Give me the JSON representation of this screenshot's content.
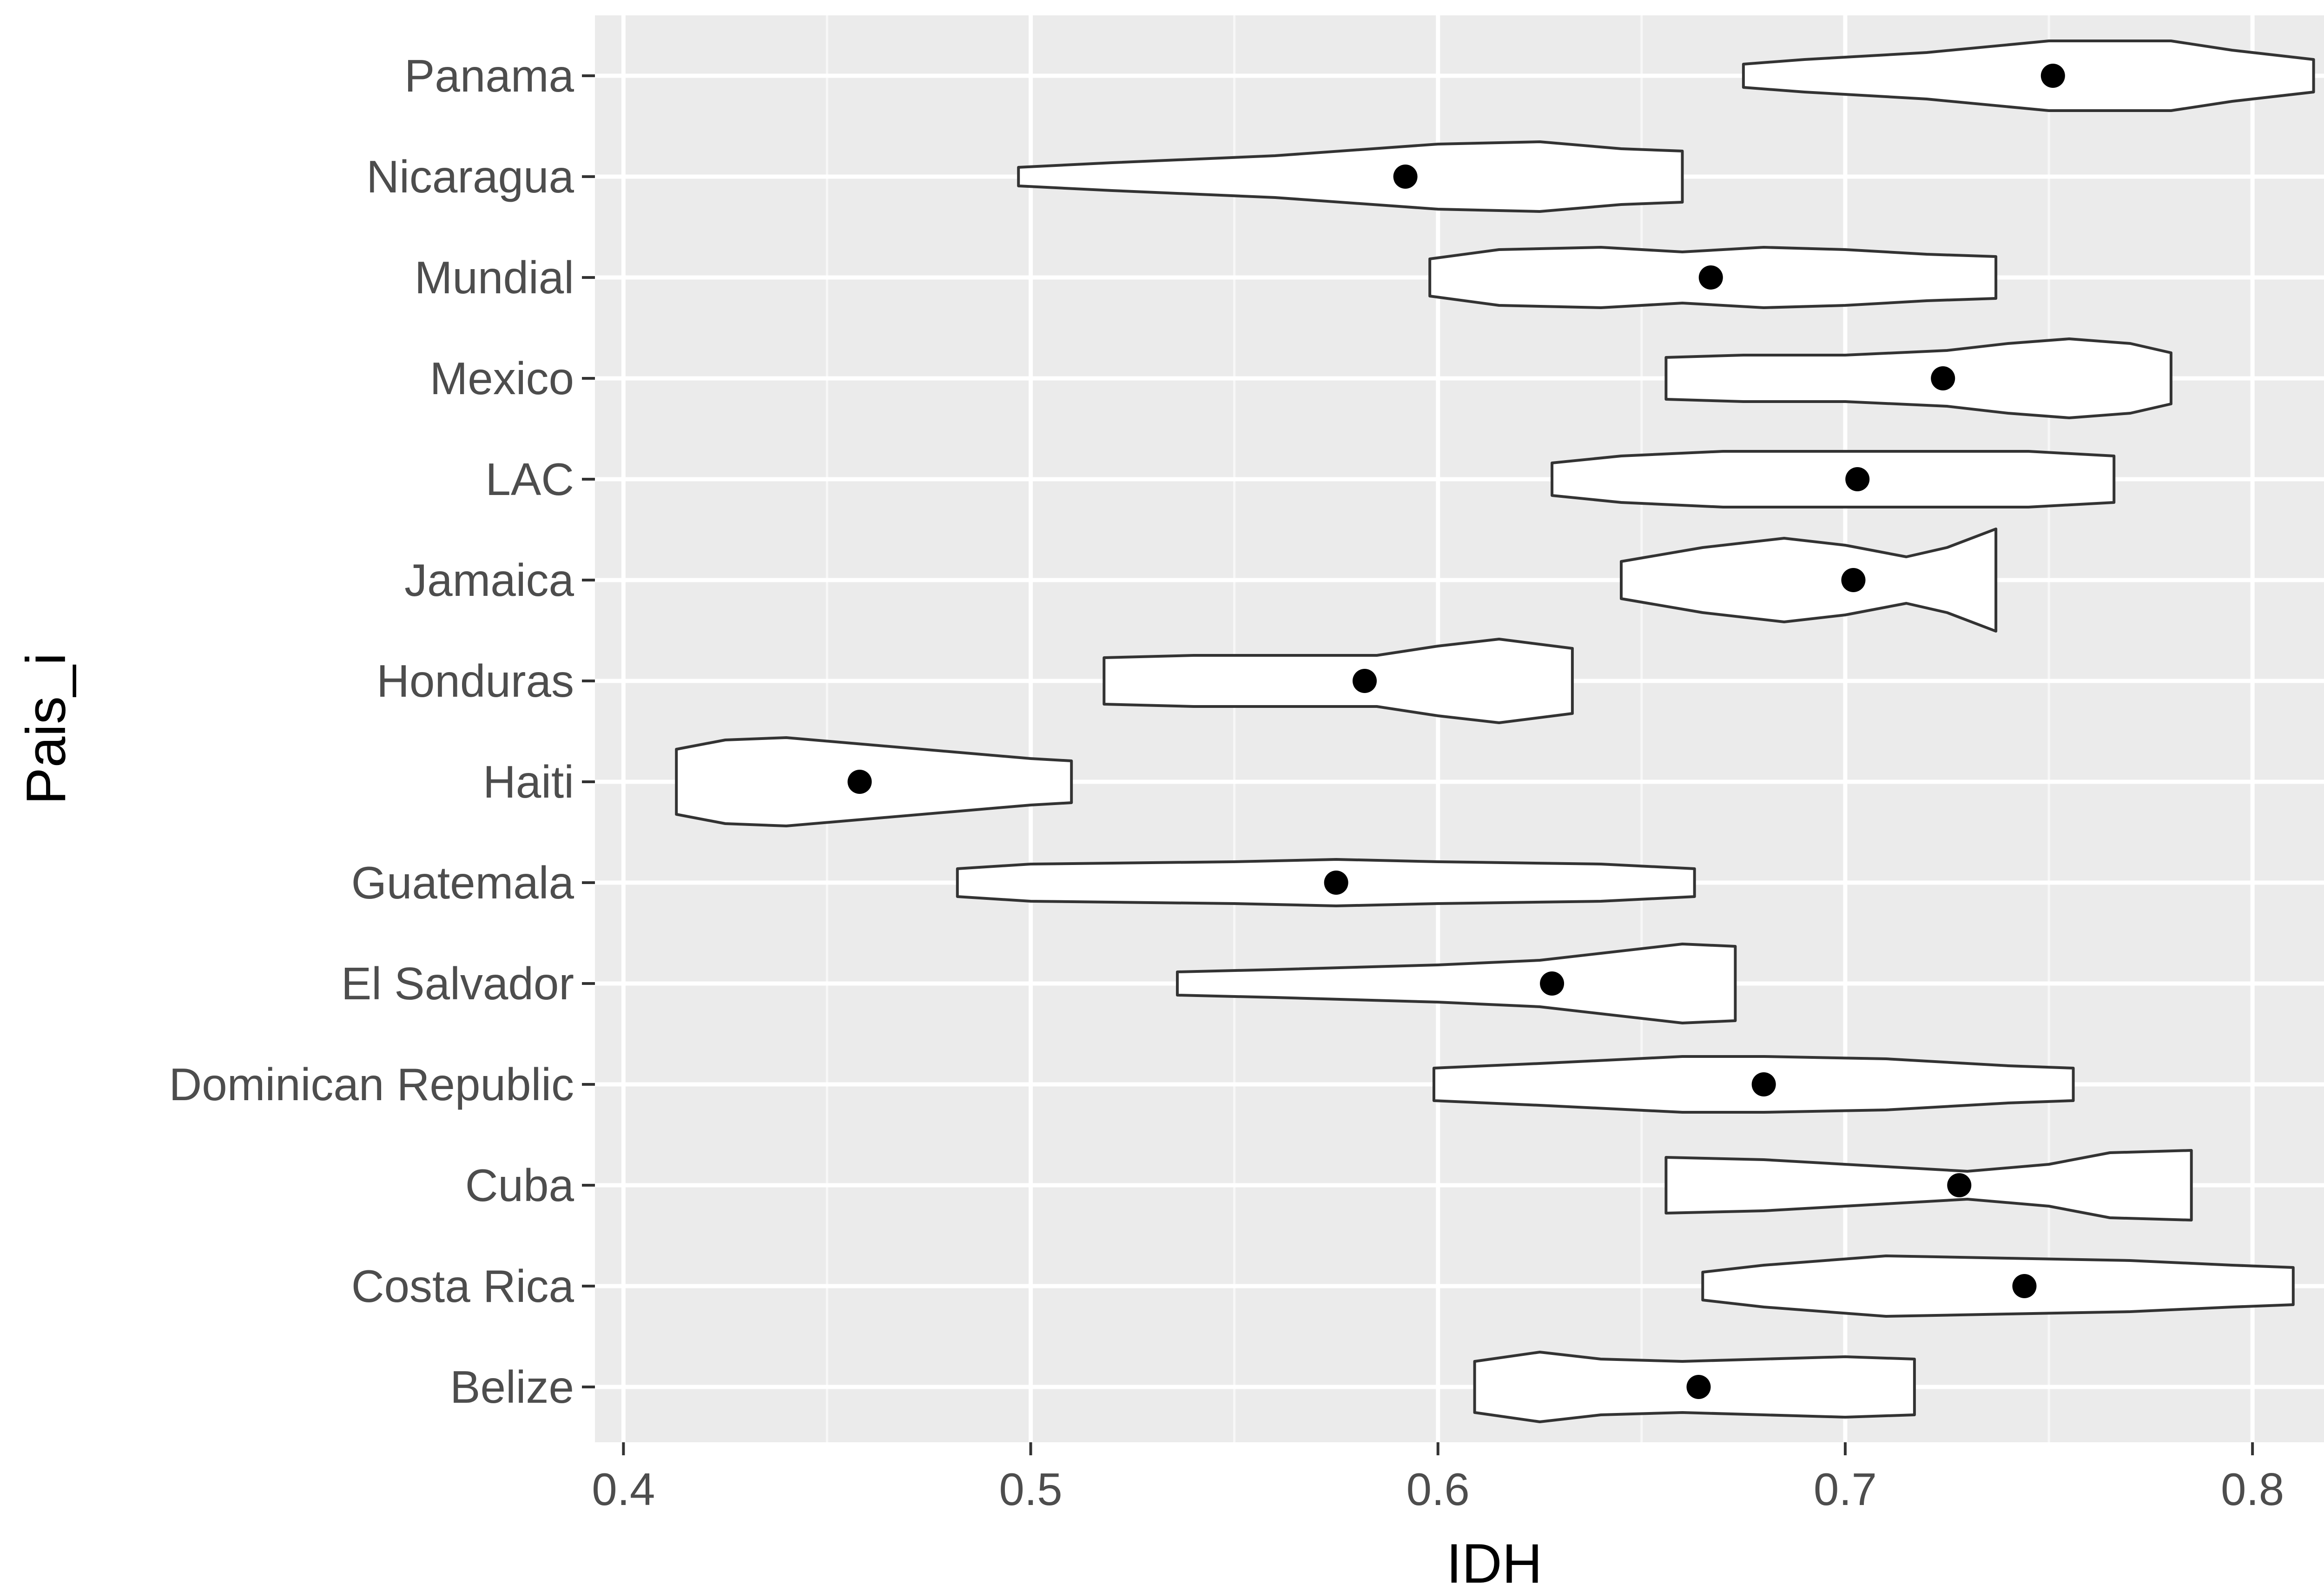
{
  "chart_data": {
    "type": "violin",
    "title": "",
    "xlabel": "IDH",
    "ylabel": "Pais_i",
    "xlim": [
      0.393,
      0.83
    ],
    "x_ticks": [
      0.4,
      0.5,
      0.6,
      0.7,
      0.8
    ],
    "x_tick_labels": [
      "0.4",
      "0.5",
      "0.6",
      "0.7",
      "0.8"
    ],
    "grid": true,
    "legend": "none",
    "categories": [
      "Panama",
      "Nicaragua",
      "Mundial",
      "Mexico",
      "LAC",
      "Jamaica",
      "Honduras",
      "Haiti",
      "Guatemala",
      "El Salvador",
      "Dominican Republic",
      "Cuba",
      "Costa Rica",
      "Belize"
    ],
    "series": [
      {
        "category": "Panama",
        "min": 0.675,
        "max": 0.815,
        "mean": 0.751,
        "profile": [
          [
            0.675,
            0.25
          ],
          [
            0.69,
            0.35
          ],
          [
            0.72,
            0.5
          ],
          [
            0.75,
            0.75
          ],
          [
            0.78,
            0.75
          ],
          [
            0.795,
            0.55
          ],
          [
            0.815,
            0.35
          ]
        ]
      },
      {
        "category": "Nicaragua",
        "min": 0.497,
        "max": 0.66,
        "mean": 0.592,
        "profile": [
          [
            0.497,
            0.2
          ],
          [
            0.52,
            0.3
          ],
          [
            0.56,
            0.45
          ],
          [
            0.6,
            0.7
          ],
          [
            0.625,
            0.75
          ],
          [
            0.645,
            0.6
          ],
          [
            0.66,
            0.55
          ]
        ]
      },
      {
        "category": "Mundial",
        "min": 0.598,
        "max": 0.737,
        "mean": 0.667,
        "profile": [
          [
            0.598,
            0.4
          ],
          [
            0.615,
            0.6
          ],
          [
            0.64,
            0.65
          ],
          [
            0.66,
            0.55
          ],
          [
            0.68,
            0.65
          ],
          [
            0.7,
            0.6
          ],
          [
            0.72,
            0.5
          ],
          [
            0.737,
            0.45
          ]
        ]
      },
      {
        "category": "Mexico",
        "min": 0.656,
        "max": 0.78,
        "mean": 0.724,
        "profile": [
          [
            0.656,
            0.45
          ],
          [
            0.675,
            0.5
          ],
          [
            0.7,
            0.5
          ],
          [
            0.725,
            0.6
          ],
          [
            0.74,
            0.75
          ],
          [
            0.755,
            0.85
          ],
          [
            0.77,
            0.75
          ],
          [
            0.78,
            0.55
          ]
        ]
      },
      {
        "category": "LAC",
        "min": 0.628,
        "max": 0.766,
        "mean": 0.703,
        "profile": [
          [
            0.628,
            0.35
          ],
          [
            0.645,
            0.5
          ],
          [
            0.67,
            0.6
          ],
          [
            0.7,
            0.6
          ],
          [
            0.72,
            0.6
          ],
          [
            0.745,
            0.6
          ],
          [
            0.766,
            0.5
          ]
        ]
      },
      {
        "category": "Jamaica",
        "min": 0.645,
        "max": 0.737,
        "mean": 0.702,
        "profile": [
          [
            0.645,
            0.4
          ],
          [
            0.665,
            0.7
          ],
          [
            0.685,
            0.9
          ],
          [
            0.7,
            0.75
          ],
          [
            0.715,
            0.5
          ],
          [
            0.725,
            0.7
          ],
          [
            0.737,
            1.1
          ]
        ]
      },
      {
        "category": "Honduras",
        "min": 0.518,
        "max": 0.633,
        "mean": 0.582,
        "profile": [
          [
            0.518,
            0.5
          ],
          [
            0.54,
            0.55
          ],
          [
            0.565,
            0.55
          ],
          [
            0.585,
            0.55
          ],
          [
            0.6,
            0.75
          ],
          [
            0.615,
            0.9
          ],
          [
            0.633,
            0.7
          ]
        ]
      },
      {
        "category": "Haiti",
        "min": 0.413,
        "max": 0.51,
        "mean": 0.458,
        "profile": [
          [
            0.413,
            0.7
          ],
          [
            0.425,
            0.9
          ],
          [
            0.44,
            0.95
          ],
          [
            0.46,
            0.8
          ],
          [
            0.48,
            0.65
          ],
          [
            0.5,
            0.5
          ],
          [
            0.51,
            0.45
          ]
        ]
      },
      {
        "category": "Guatemala",
        "min": 0.482,
        "max": 0.663,
        "mean": 0.575,
        "profile": [
          [
            0.482,
            0.3
          ],
          [
            0.5,
            0.4
          ],
          [
            0.55,
            0.45
          ],
          [
            0.575,
            0.5
          ],
          [
            0.6,
            0.45
          ],
          [
            0.64,
            0.4
          ],
          [
            0.663,
            0.3
          ]
        ]
      },
      {
        "category": "El Salvador",
        "min": 0.536,
        "max": 0.673,
        "mean": 0.628,
        "profile": [
          [
            0.536,
            0.25
          ],
          [
            0.56,
            0.3
          ],
          [
            0.6,
            0.4
          ],
          [
            0.625,
            0.5
          ],
          [
            0.64,
            0.65
          ],
          [
            0.66,
            0.85
          ],
          [
            0.673,
            0.8
          ]
        ]
      },
      {
        "category": "Dominican Republic",
        "min": 0.599,
        "max": 0.756,
        "mean": 0.68,
        "profile": [
          [
            0.599,
            0.35
          ],
          [
            0.625,
            0.45
          ],
          [
            0.66,
            0.6
          ],
          [
            0.68,
            0.6
          ],
          [
            0.71,
            0.55
          ],
          [
            0.74,
            0.4
          ],
          [
            0.756,
            0.35
          ]
        ]
      },
      {
        "category": "Cuba",
        "min": 0.656,
        "max": 0.785,
        "mean": 0.728,
        "profile": [
          [
            0.656,
            0.6
          ],
          [
            0.68,
            0.55
          ],
          [
            0.71,
            0.4
          ],
          [
            0.73,
            0.3
          ],
          [
            0.75,
            0.45
          ],
          [
            0.765,
            0.7
          ],
          [
            0.785,
            0.75
          ]
        ]
      },
      {
        "category": "Costa Rica",
        "min": 0.665,
        "max": 0.81,
        "mean": 0.744,
        "profile": [
          [
            0.665,
            0.3
          ],
          [
            0.68,
            0.45
          ],
          [
            0.71,
            0.65
          ],
          [
            0.74,
            0.6
          ],
          [
            0.77,
            0.55
          ],
          [
            0.795,
            0.45
          ],
          [
            0.81,
            0.4
          ]
        ]
      },
      {
        "category": "Belize",
        "min": 0.609,
        "max": 0.717,
        "mean": 0.664,
        "profile": [
          [
            0.609,
            0.55
          ],
          [
            0.625,
            0.75
          ],
          [
            0.64,
            0.6
          ],
          [
            0.66,
            0.55
          ],
          [
            0.68,
            0.6
          ],
          [
            0.7,
            0.65
          ],
          [
            0.717,
            0.6
          ]
        ]
      }
    ]
  }
}
